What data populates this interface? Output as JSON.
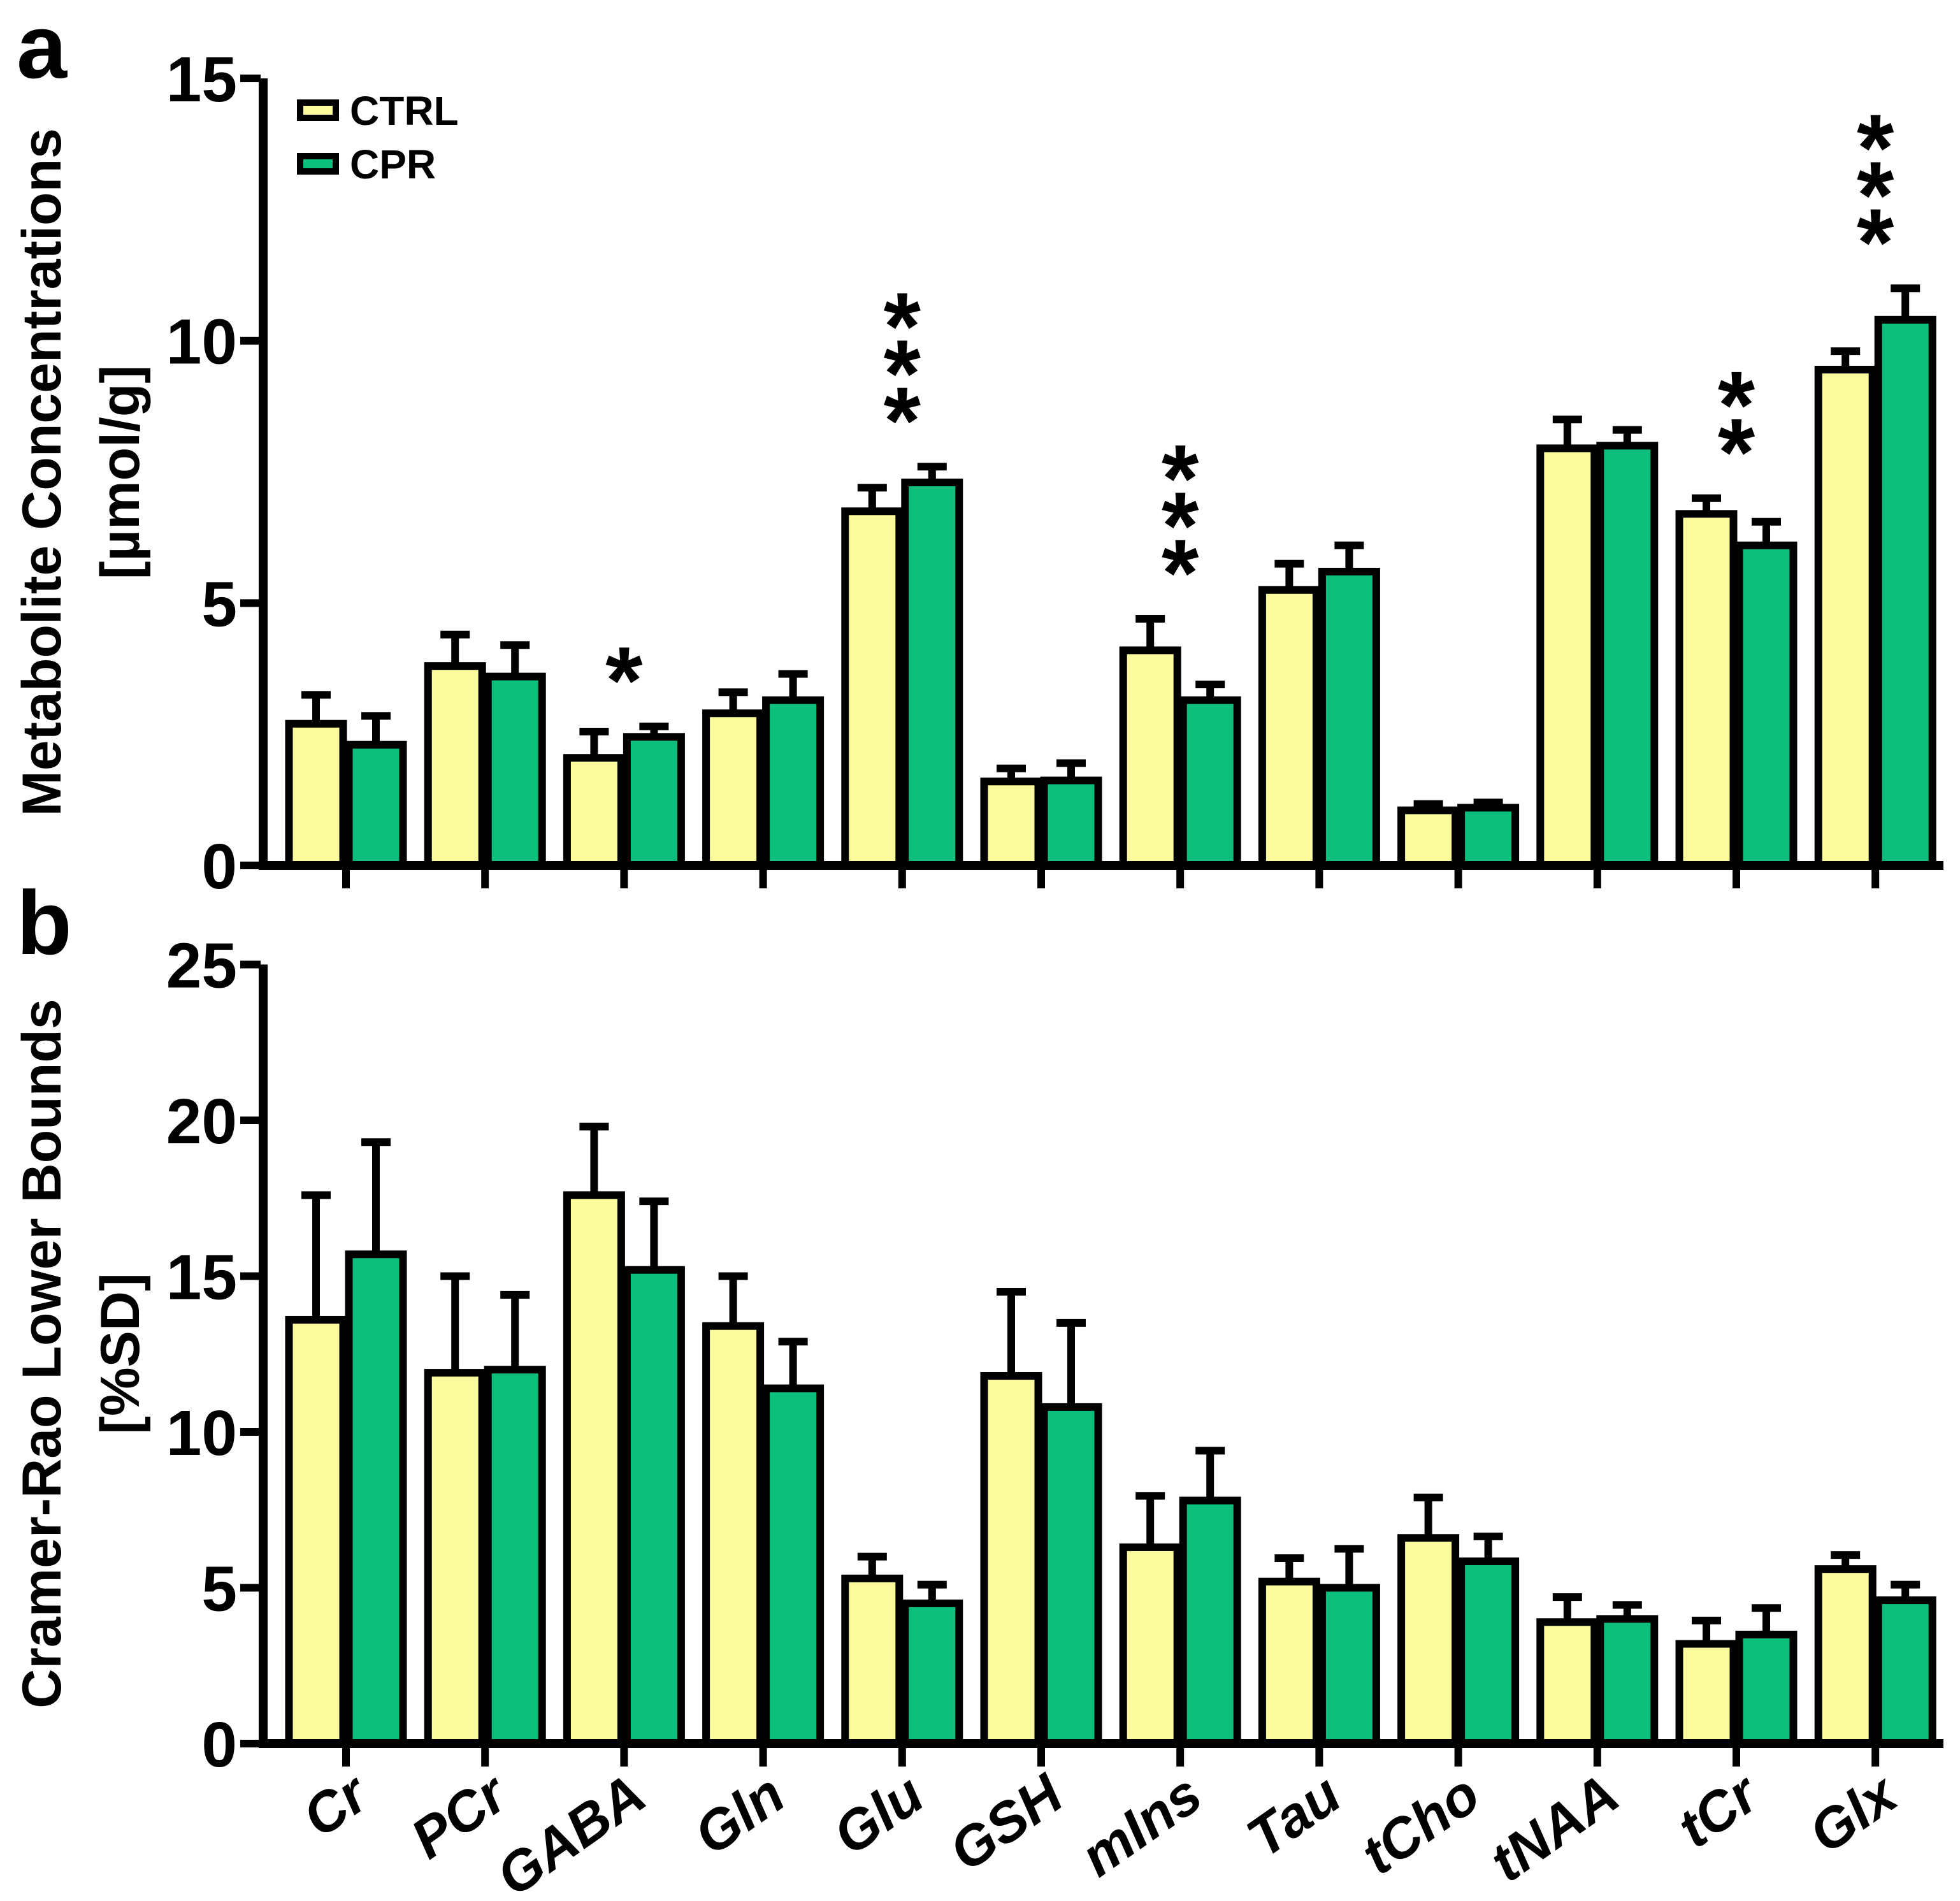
{
  "legend": {
    "items": [
      {
        "label": "CTRL",
        "color": "#FBFB9E"
      },
      {
        "label": "CPR",
        "color": "#0CBF7C"
      }
    ]
  },
  "chart_data": [
    {
      "type": "bar",
      "panel_letter": "a",
      "ylabel": "Metabolite Concentrations",
      "ylabel_unit": "[µmol/g]",
      "xlabel": "",
      "ylim": [
        0,
        15
      ],
      "yticks": [
        0,
        5,
        10,
        15
      ],
      "grid": false,
      "legend_position": "top-left-inside",
      "show_category_labels": false,
      "categories": [
        "Cr",
        "PCr",
        "GABA",
        "Gln",
        "Glu",
        "GSH",
        "mIns",
        "Tau",
        "tCho",
        "tNAA",
        "tCr",
        "Glx"
      ],
      "series": [
        {
          "name": "CTRL",
          "color": "#FBFB9E",
          "values": [
            2.7,
            3.8,
            2.05,
            2.9,
            6.75,
            1.6,
            4.1,
            5.25,
            1.05,
            7.95,
            6.7,
            9.45
          ],
          "errors": [
            0.55,
            0.6,
            0.5,
            0.4,
            0.45,
            0.25,
            0.6,
            0.5,
            0.12,
            0.55,
            0.3,
            0.35
          ]
        },
        {
          "name": "CPR",
          "color": "#0CBF7C",
          "values": [
            2.3,
            3.6,
            2.45,
            3.15,
            7.3,
            1.62,
            3.15,
            5.6,
            1.1,
            8.0,
            6.1,
            10.4
          ],
          "errors": [
            0.55,
            0.6,
            0.2,
            0.5,
            0.3,
            0.33,
            0.3,
            0.5,
            0.1,
            0.3,
            0.45,
            0.6
          ]
        }
      ],
      "significance": [
        {
          "category": "GABA",
          "label": "*"
        },
        {
          "category": "Glu",
          "label": "***"
        },
        {
          "category": "mIns",
          "label": "***"
        },
        {
          "category": "tCr",
          "label": "**"
        },
        {
          "category": "Glx",
          "label": "***"
        }
      ]
    },
    {
      "type": "bar",
      "panel_letter": "b",
      "ylabel": "Cramer-Rao Lower Bounds",
      "ylabel_unit": "[%SD]",
      "xlabel": "",
      "ylim": [
        0,
        25
      ],
      "yticks": [
        0,
        5,
        10,
        15,
        20,
        25
      ],
      "grid": false,
      "legend_position": "none",
      "show_category_labels": true,
      "category_label_rotation_deg": -35,
      "categories": [
        "Cr",
        "PCr",
        "GABA",
        "Gln",
        "Glu",
        "GSH",
        "mIns",
        "Tau",
        "tCho",
        "tNAA",
        "tCr",
        "Glx"
      ],
      "series": [
        {
          "name": "CTRL",
          "color": "#FBFB9E",
          "values": [
            13.6,
            11.9,
            17.6,
            13.4,
            5.3,
            11.8,
            6.3,
            5.2,
            6.6,
            3.9,
            3.2,
            5.6
          ],
          "errors": [
            4.0,
            3.1,
            2.2,
            1.6,
            0.7,
            2.7,
            1.65,
            0.75,
            1.3,
            0.8,
            0.75,
            0.45
          ]
        },
        {
          "name": "CPR",
          "color": "#0CBF7C",
          "values": [
            15.7,
            12.0,
            15.2,
            11.4,
            4.5,
            10.8,
            7.8,
            5.0,
            5.85,
            4.0,
            3.5,
            4.6
          ],
          "errors": [
            3.6,
            2.4,
            2.2,
            1.5,
            0.6,
            2.7,
            1.6,
            1.25,
            0.8,
            0.45,
            0.85,
            0.5
          ]
        }
      ],
      "significance": []
    }
  ]
}
